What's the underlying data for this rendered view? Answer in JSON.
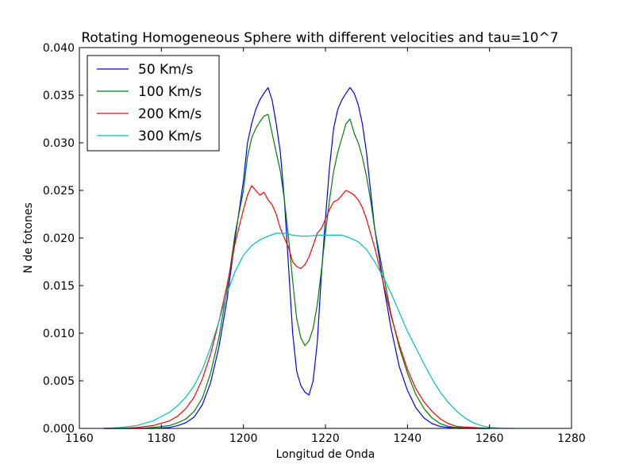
{
  "chart_data": {
    "type": "line",
    "title": "Rotating Homogeneous Sphere with different velocities and tau=10^7",
    "xlabel": "Longitud de Onda",
    "ylabel": "N de fotones",
    "xlim": [
      1160,
      1280
    ],
    "ylim": [
      0.0,
      0.04
    ],
    "xticks": [
      1160,
      1180,
      1200,
      1220,
      1240,
      1260,
      1280
    ],
    "xtick_labels": [
      "1160",
      "1180",
      "1200",
      "1220",
      "1240",
      "1260",
      "1280"
    ],
    "yticks": [
      0.0,
      0.005,
      0.01,
      0.015,
      0.02,
      0.025,
      0.03,
      0.035,
      0.04
    ],
    "ytick_labels": [
      "0.000",
      "0.005",
      "0.010",
      "0.015",
      "0.020",
      "0.025",
      "0.030",
      "0.035",
      "0.040"
    ],
    "grid": false,
    "legend_position": "top-left",
    "series": [
      {
        "name": "50 Km/s",
        "color": "#0000ff",
        "x": [
          1166,
          1170,
          1174,
          1178,
          1182,
          1184,
          1186,
          1188,
          1190,
          1192,
          1194,
          1196,
          1198,
          1200,
          1201,
          1202,
          1203,
          1204,
          1205,
          1206,
          1207,
          1208,
          1209,
          1210,
          1211,
          1212,
          1213,
          1214,
          1215,
          1216,
          1217,
          1218,
          1219,
          1220,
          1221,
          1222,
          1223,
          1224,
          1225,
          1226,
          1227,
          1228,
          1229,
          1230,
          1231,
          1232,
          1234,
          1236,
          1238,
          1240,
          1242,
          1244,
          1246,
          1248,
          1250,
          1252,
          1256,
          1260
        ],
        "y": [
          0.0,
          0.0,
          0.0,
          0.0,
          0.0001,
          0.0003,
          0.0006,
          0.0012,
          0.0025,
          0.0048,
          0.0085,
          0.0135,
          0.02,
          0.026,
          0.03,
          0.032,
          0.0335,
          0.0345,
          0.0352,
          0.0358,
          0.0345,
          0.032,
          0.029,
          0.024,
          0.017,
          0.01,
          0.006,
          0.0045,
          0.0038,
          0.0035,
          0.005,
          0.009,
          0.016,
          0.022,
          0.0275,
          0.0315,
          0.0335,
          0.0345,
          0.0352,
          0.0358,
          0.0352,
          0.034,
          0.032,
          0.029,
          0.025,
          0.021,
          0.0155,
          0.0105,
          0.0065,
          0.004,
          0.0022,
          0.0011,
          0.0005,
          0.0002,
          0.0001,
          0.0,
          0.0,
          0.0
        ]
      },
      {
        "name": "100 Km/s",
        "color": "#008000",
        "x": [
          1166,
          1170,
          1174,
          1178,
          1182,
          1184,
          1186,
          1188,
          1190,
          1192,
          1194,
          1196,
          1198,
          1200,
          1201,
          1202,
          1203,
          1204,
          1205,
          1206,
          1207,
          1208,
          1209,
          1210,
          1211,
          1212,
          1213,
          1214,
          1215,
          1216,
          1217,
          1218,
          1219,
          1220,
          1221,
          1222,
          1223,
          1224,
          1225,
          1226,
          1227,
          1228,
          1229,
          1230,
          1231,
          1232,
          1234,
          1236,
          1238,
          1240,
          1242,
          1244,
          1246,
          1248,
          1250,
          1252,
          1256,
          1260
        ],
        "y": [
          0.0,
          0.0,
          0.0,
          0.0001,
          0.0003,
          0.0006,
          0.001,
          0.0018,
          0.0032,
          0.0058,
          0.0095,
          0.0145,
          0.0205,
          0.025,
          0.0285,
          0.0305,
          0.0315,
          0.0322,
          0.0328,
          0.033,
          0.031,
          0.029,
          0.027,
          0.024,
          0.02,
          0.0155,
          0.0115,
          0.0095,
          0.0087,
          0.0092,
          0.0105,
          0.013,
          0.0165,
          0.0205,
          0.024,
          0.027,
          0.029,
          0.0305,
          0.032,
          0.0325,
          0.031,
          0.03,
          0.0285,
          0.0265,
          0.024,
          0.021,
          0.0165,
          0.012,
          0.0085,
          0.0058,
          0.0036,
          0.0021,
          0.0011,
          0.0005,
          0.0002,
          0.0001,
          0.0,
          0.0
        ]
      },
      {
        "name": "200 Km/s",
        "color": "#ff0000",
        "x": [
          1166,
          1170,
          1174,
          1178,
          1182,
          1184,
          1186,
          1188,
          1190,
          1192,
          1194,
          1196,
          1198,
          1200,
          1201,
          1202,
          1203,
          1204,
          1205,
          1206,
          1207,
          1208,
          1209,
          1210,
          1211,
          1212,
          1213,
          1214,
          1215,
          1216,
          1217,
          1218,
          1219,
          1220,
          1221,
          1222,
          1223,
          1224,
          1225,
          1226,
          1227,
          1228,
          1229,
          1230,
          1231,
          1232,
          1234,
          1236,
          1238,
          1240,
          1242,
          1244,
          1246,
          1248,
          1250,
          1252,
          1256,
          1260
        ],
        "y": [
          0.0,
          0.0,
          0.0001,
          0.0003,
          0.0008,
          0.0013,
          0.0021,
          0.0033,
          0.0052,
          0.0078,
          0.0112,
          0.015,
          0.0195,
          0.023,
          0.0245,
          0.0255,
          0.025,
          0.0245,
          0.0248,
          0.024,
          0.0235,
          0.0225,
          0.021,
          0.02,
          0.019,
          0.0175,
          0.017,
          0.0168,
          0.0172,
          0.018,
          0.0192,
          0.0205,
          0.021,
          0.022,
          0.023,
          0.0238,
          0.024,
          0.0245,
          0.025,
          0.0248,
          0.0245,
          0.024,
          0.0232,
          0.022,
          0.0205,
          0.019,
          0.0155,
          0.0118,
          0.0088,
          0.0062,
          0.0042,
          0.0028,
          0.0018,
          0.001,
          0.0005,
          0.0002,
          0.0001,
          0.0
        ]
      },
      {
        "name": "300 Km/s",
        "color": "#00bfbf",
        "x": [
          1166,
          1170,
          1174,
          1178,
          1182,
          1184,
          1186,
          1188,
          1190,
          1192,
          1194,
          1196,
          1198,
          1200,
          1202,
          1204,
          1206,
          1208,
          1210,
          1212,
          1214,
          1216,
          1218,
          1220,
          1222,
          1224,
          1226,
          1228,
          1230,
          1232,
          1234,
          1236,
          1238,
          1240,
          1242,
          1244,
          1246,
          1248,
          1250,
          1252,
          1254,
          1256,
          1258,
          1260,
          1264,
          1266
        ],
        "y": [
          0.0,
          0.0001,
          0.0003,
          0.0008,
          0.0017,
          0.0024,
          0.0033,
          0.0045,
          0.0062,
          0.0085,
          0.0112,
          0.0142,
          0.0165,
          0.0182,
          0.0192,
          0.0198,
          0.0202,
          0.0205,
          0.0205,
          0.0203,
          0.0202,
          0.0202,
          0.0203,
          0.0203,
          0.0203,
          0.0203,
          0.02,
          0.0196,
          0.0188,
          0.0175,
          0.016,
          0.0142,
          0.0122,
          0.0102,
          0.0085,
          0.0068,
          0.0052,
          0.0038,
          0.0027,
          0.0018,
          0.0011,
          0.0006,
          0.0003,
          0.0001,
          0.0,
          0.0
        ]
      }
    ]
  }
}
